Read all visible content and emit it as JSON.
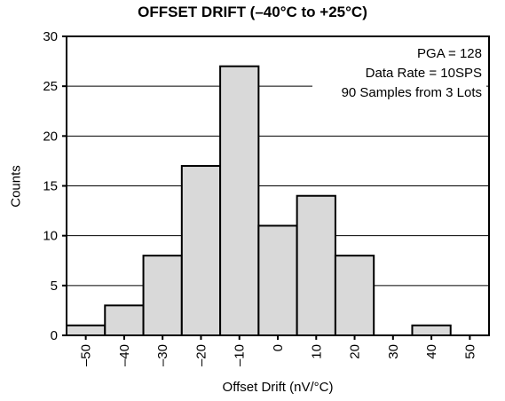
{
  "chart_data": {
    "type": "bar",
    "title": "OFFSET DRIFT (–40°C to +25°C)",
    "xlabel": "Offset Drift (nV/°C)",
    "ylabel": "Counts",
    "x_tick_labels": [
      "–50",
      "–40",
      "–30",
      "–20",
      "–10",
      "0",
      "10",
      "20",
      "30",
      "40",
      "50"
    ],
    "y_tick_labels": [
      "0",
      "5",
      "10",
      "15",
      "20",
      "25",
      "30"
    ],
    "ylim": [
      0,
      30
    ],
    "xlim": [
      -55,
      55
    ],
    "bins": [
      {
        "x": -50,
        "count": 1
      },
      {
        "x": -40,
        "count": 3
      },
      {
        "x": -30,
        "count": 8
      },
      {
        "x": -20,
        "count": 17
      },
      {
        "x": -10,
        "count": 27
      },
      {
        "x": 0,
        "count": 11
      },
      {
        "x": 10,
        "count": 14
      },
      {
        "x": 20,
        "count": 8
      },
      {
        "x": 30,
        "count": 0
      },
      {
        "x": 40,
        "count": 1
      },
      {
        "x": 50,
        "count": 0
      }
    ],
    "annotations": [
      "PGA = 128",
      "Data Rate = 10SPS",
      "90 Samples from 3 Lots"
    ],
    "grid": "horizontal",
    "bar_color": "#d9d9d9"
  }
}
